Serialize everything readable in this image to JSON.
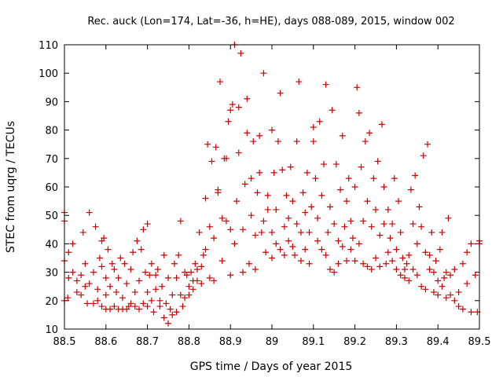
{
  "chart_data": {
    "type": "scatter",
    "title": "Rec. auck (Lon=174, Lat=-36, h=HE), days 088-089, 2015, window 002",
    "xlabel": "GPS time / Days of year 2015",
    "ylabel": "STEC from uqrg / TECUs",
    "xlim": [
      88.5,
      89.5
    ],
    "ylim": [
      10,
      110
    ],
    "xticks": [
      "88.5",
      "88.6",
      "88.7",
      "88.8",
      "88.9",
      "89",
      "89.1",
      "89.2",
      "89.3",
      "89.4",
      "89.5"
    ],
    "yticks": [
      "10",
      "20",
      "30",
      "40",
      "50",
      "60",
      "70",
      "80",
      "90",
      "100",
      "110"
    ],
    "grid": false,
    "marker": "+",
    "marker_color": "#cc0000",
    "series": [
      {
        "name": "STEC",
        "points": [
          [
            88.5,
            20
          ],
          [
            88.5,
            34
          ],
          [
            88.5,
            48
          ],
          [
            88.5,
            51
          ],
          [
            88.508,
            21
          ],
          [
            88.51,
            37
          ],
          [
            88.51,
            28
          ],
          [
            88.52,
            30
          ],
          [
            88.52,
            40
          ],
          [
            88.53,
            23
          ],
          [
            88.53,
            27
          ],
          [
            88.54,
            22
          ],
          [
            88.54,
            29
          ],
          [
            88.545,
            44
          ],
          [
            88.55,
            25
          ],
          [
            88.55,
            33
          ],
          [
            88.555,
            19
          ],
          [
            88.56,
            51
          ],
          [
            88.56,
            26
          ],
          [
            88.57,
            19
          ],
          [
            88.57,
            30
          ],
          [
            88.575,
            46
          ],
          [
            88.58,
            20
          ],
          [
            88.58,
            24
          ],
          [
            88.585,
            35
          ],
          [
            88.59,
            41
          ],
          [
            88.59,
            18
          ],
          [
            88.59,
            32
          ],
          [
            88.595,
            42
          ],
          [
            88.6,
            22
          ],
          [
            88.6,
            17
          ],
          [
            88.6,
            28
          ],
          [
            88.605,
            38
          ],
          [
            88.61,
            17
          ],
          [
            88.61,
            25
          ],
          [
            88.615,
            33
          ],
          [
            88.62,
            18
          ],
          [
            88.62,
            31
          ],
          [
            88.625,
            23
          ],
          [
            88.63,
            17
          ],
          [
            88.63,
            28
          ],
          [
            88.635,
            35
          ],
          [
            88.64,
            17
          ],
          [
            88.64,
            21
          ],
          [
            88.645,
            33
          ],
          [
            88.65,
            17
          ],
          [
            88.65,
            26
          ],
          [
            88.655,
            18
          ],
          [
            88.66,
            31
          ],
          [
            88.66,
            19
          ],
          [
            88.665,
            37
          ],
          [
            88.67,
            18
          ],
          [
            88.67,
            23
          ],
          [
            88.675,
            41
          ],
          [
            88.68,
            17
          ],
          [
            88.68,
            27
          ],
          [
            88.685,
            38
          ],
          [
            88.69,
            19
          ],
          [
            88.69,
            45
          ],
          [
            88.695,
            30
          ],
          [
            88.7,
            18
          ],
          [
            88.7,
            23
          ],
          [
            88.7,
            47
          ],
          [
            88.705,
            29
          ],
          [
            88.71,
            20
          ],
          [
            88.71,
            33
          ],
          [
            88.715,
            16
          ],
          [
            88.72,
            24
          ],
          [
            88.72,
            29
          ],
          [
            88.725,
            31
          ],
          [
            88.73,
            18
          ],
          [
            88.73,
            20
          ],
          [
            88.735,
            25
          ],
          [
            88.74,
            36
          ],
          [
            88.74,
            14
          ],
          [
            88.745,
            19
          ],
          [
            88.75,
            12
          ],
          [
            88.75,
            28
          ],
          [
            88.755,
            17
          ],
          [
            88.76,
            15
          ],
          [
            88.76,
            22
          ],
          [
            88.765,
            33
          ],
          [
            88.77,
            16
          ],
          [
            88.77,
            28
          ],
          [
            88.775,
            36
          ],
          [
            88.78,
            22
          ],
          [
            88.78,
            48
          ],
          [
            88.785,
            18
          ],
          [
            88.79,
            21
          ],
          [
            88.79,
            30
          ],
          [
            88.795,
            29
          ],
          [
            88.8,
            22
          ],
          [
            88.8,
            25
          ],
          [
            88.805,
            30
          ],
          [
            88.81,
            24
          ],
          [
            88.81,
            27
          ],
          [
            88.815,
            33
          ],
          [
            88.82,
            27
          ],
          [
            88.82,
            31
          ],
          [
            88.825,
            44
          ],
          [
            88.83,
            26
          ],
          [
            88.83,
            32
          ],
          [
            88.835,
            36
          ],
          [
            88.84,
            38
          ],
          [
            88.84,
            56
          ],
          [
            88.845,
            75
          ],
          [
            88.85,
            28
          ],
          [
            88.85,
            46
          ],
          [
            88.855,
            69
          ],
          [
            88.86,
            27
          ],
          [
            88.86,
            42
          ],
          [
            88.865,
            74
          ],
          [
            88.87,
            58
          ],
          [
            88.87,
            59
          ],
          [
            88.875,
            97
          ],
          [
            88.88,
            34
          ],
          [
            88.88,
            49
          ],
          [
            88.885,
            70
          ],
          [
            88.89,
            48
          ],
          [
            88.89,
            70
          ],
          [
            88.895,
            83
          ],
          [
            88.9,
            29
          ],
          [
            88.9,
            45
          ],
          [
            88.9,
            87
          ],
          [
            88.905,
            89
          ],
          [
            88.91,
            110
          ],
          [
            88.91,
            40
          ],
          [
            88.915,
            55
          ],
          [
            88.92,
            72
          ],
          [
            88.92,
            88
          ],
          [
            88.925,
            107
          ],
          [
            88.93,
            30
          ],
          [
            88.93,
            45
          ],
          [
            88.935,
            61
          ],
          [
            88.94,
            79
          ],
          [
            88.94,
            91
          ],
          [
            88.945,
            33
          ],
          [
            88.95,
            50
          ],
          [
            88.95,
            63
          ],
          [
            88.955,
            76
          ],
          [
            88.96,
            31
          ],
          [
            88.96,
            43
          ],
          [
            88.965,
            58
          ],
          [
            88.97,
            78
          ],
          [
            88.97,
            65
          ],
          [
            88.975,
            44
          ],
          [
            88.98,
            48
          ],
          [
            88.98,
            100
          ],
          [
            88.985,
            37
          ],
          [
            88.99,
            52
          ],
          [
            88.99,
            57
          ],
          [
            89.0,
            35
          ],
          [
            89.0,
            44
          ],
          [
            89.0,
            80
          ],
          [
            89.005,
            65
          ],
          [
            89.01,
            40
          ],
          [
            89.01,
            52
          ],
          [
            89.015,
            76
          ],
          [
            89.02,
            93
          ],
          [
            89.02,
            38
          ],
          [
            89.025,
            66
          ],
          [
            89.03,
            36
          ],
          [
            89.03,
            46
          ],
          [
            89.035,
            57
          ],
          [
            89.04,
            41
          ],
          [
            89.04,
            49
          ],
          [
            89.045,
            67
          ],
          [
            89.05,
            39
          ],
          [
            89.05,
            55
          ],
          [
            89.055,
            36
          ],
          [
            89.06,
            47
          ],
          [
            89.06,
            76
          ],
          [
            89.065,
            97
          ],
          [
            89.07,
            34
          ],
          [
            89.07,
            44
          ],
          [
            89.075,
            58
          ],
          [
            89.08,
            38
          ],
          [
            89.08,
            51
          ],
          [
            89.085,
            65
          ],
          [
            89.09,
            33
          ],
          [
            89.09,
            44
          ],
          [
            89.095,
            53
          ],
          [
            89.1,
            76
          ],
          [
            89.1,
            81
          ],
          [
            89.105,
            63
          ],
          [
            89.11,
            41
          ],
          [
            89.11,
            49
          ],
          [
            89.115,
            83
          ],
          [
            89.12,
            38
          ],
          [
            89.12,
            57
          ],
          [
            89.125,
            68
          ],
          [
            89.13,
            96
          ],
          [
            89.13,
            36
          ],
          [
            89.135,
            44
          ],
          [
            89.14,
            31
          ],
          [
            89.14,
            53
          ],
          [
            89.145,
            87
          ],
          [
            89.15,
            30
          ],
          [
            89.15,
            47
          ],
          [
            89.155,
            68
          ],
          [
            89.16,
            33
          ],
          [
            89.16,
            41
          ],
          [
            89.165,
            59
          ],
          [
            89.17,
            78
          ],
          [
            89.17,
            39
          ],
          [
            89.175,
            46
          ],
          [
            89.18,
            34
          ],
          [
            89.18,
            55
          ],
          [
            89.185,
            63
          ],
          [
            89.19,
            38
          ],
          [
            89.19,
            48
          ],
          [
            89.195,
            42
          ],
          [
            89.2,
            34
          ],
          [
            89.2,
            60
          ],
          [
            89.205,
            95
          ],
          [
            89.21,
            86
          ],
          [
            89.21,
            40
          ],
          [
            89.215,
            67
          ],
          [
            89.22,
            33
          ],
          [
            89.22,
            48
          ],
          [
            89.225,
            76
          ],
          [
            89.23,
            32
          ],
          [
            89.23,
            55
          ],
          [
            89.235,
            79
          ],
          [
            89.24,
            31
          ],
          [
            89.24,
            46
          ],
          [
            89.245,
            63
          ],
          [
            89.25,
            35
          ],
          [
            89.25,
            52
          ],
          [
            89.255,
            69
          ],
          [
            89.26,
            32
          ],
          [
            89.26,
            43
          ],
          [
            89.265,
            82
          ],
          [
            89.27,
            47
          ],
          [
            89.27,
            60
          ],
          [
            89.275,
            33
          ],
          [
            89.28,
            37
          ],
          [
            89.28,
            52
          ],
          [
            89.285,
            42
          ],
          [
            89.29,
            34
          ],
          [
            89.29,
            47
          ],
          [
            89.295,
            63
          ],
          [
            89.3,
            31
          ],
          [
            89.3,
            38
          ],
          [
            89.305,
            55
          ],
          [
            89.31,
            29
          ],
          [
            89.31,
            44
          ],
          [
            89.315,
            35
          ],
          [
            89.32,
            28
          ],
          [
            89.32,
            31
          ],
          [
            89.325,
            33
          ],
          [
            89.33,
            27
          ],
          [
            89.33,
            36
          ],
          [
            89.335,
            59
          ],
          [
            89.34,
            31
          ],
          [
            89.34,
            47
          ],
          [
            89.345,
            64
          ],
          [
            89.35,
            29
          ],
          [
            89.35,
            40
          ],
          [
            89.355,
            53
          ],
          [
            89.36,
            25
          ],
          [
            89.36,
            46
          ],
          [
            89.365,
            71
          ],
          [
            89.37,
            24
          ],
          [
            89.37,
            37
          ],
          [
            89.375,
            75
          ],
          [
            89.38,
            31
          ],
          [
            89.38,
            36
          ],
          [
            89.385,
            44
          ],
          [
            89.39,
            23
          ],
          [
            89.39,
            30
          ],
          [
            89.395,
            34
          ],
          [
            89.4,
            22
          ],
          [
            89.4,
            27
          ],
          [
            89.405,
            38
          ],
          [
            89.41,
            25
          ],
          [
            89.41,
            44
          ],
          [
            89.415,
            28
          ],
          [
            89.42,
            21
          ],
          [
            89.42,
            30
          ],
          [
            89.425,
            49
          ],
          [
            89.43,
            22
          ],
          [
            89.43,
            29
          ],
          [
            89.44,
            20
          ],
          [
            89.44,
            31
          ],
          [
            89.45,
            18
          ],
          [
            89.45,
            23
          ],
          [
            89.46,
            17
          ],
          [
            89.46,
            33
          ],
          [
            89.47,
            26
          ],
          [
            89.47,
            37
          ],
          [
            89.48,
            16
          ],
          [
            89.48,
            40
          ],
          [
            89.49,
            29
          ],
          [
            89.495,
            16
          ],
          [
            89.5,
            40
          ],
          [
            89.5,
            41
          ]
        ]
      }
    ]
  }
}
